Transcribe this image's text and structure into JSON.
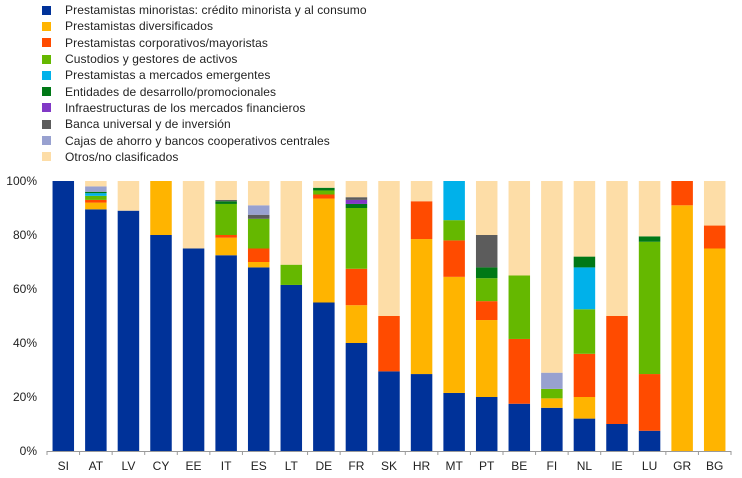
{
  "chart_data": {
    "type": "bar",
    "stacked": true,
    "categories": [
      "SI",
      "AT",
      "LV",
      "CY",
      "EE",
      "IT",
      "ES",
      "LT",
      "DE",
      "FR",
      "SK",
      "HR",
      "MT",
      "PT",
      "BE",
      "FI",
      "NL",
      "IE",
      "LU",
      "GR",
      "BG"
    ],
    "ylim": [
      0,
      100
    ],
    "y_ticks": [
      "0%",
      "20%",
      "40%",
      "60%",
      "80%",
      "100%"
    ],
    "y_tick_values": [
      0,
      20,
      40,
      60,
      80,
      100
    ],
    "legend_position": "top-left",
    "grid": false,
    "series": [
      {
        "name": "Prestamistas minoristas: crédito minorista y al consumo",
        "color": "#003299",
        "values": [
          100,
          89.5,
          89,
          80,
          75,
          72.5,
          68,
          61.5,
          55,
          40,
          29.5,
          28.5,
          21.5,
          20,
          17.5,
          16,
          12,
          10,
          7.5,
          0,
          0
        ]
      },
      {
        "name": "Prestamistas diversificados",
        "color": "#FFB400",
        "values": [
          0,
          2.5,
          0,
          20,
          0,
          6.5,
          2,
          0,
          38.5,
          14,
          0,
          50,
          43,
          28.5,
          0,
          3.5,
          8,
          0,
          0,
          91,
          75
        ]
      },
      {
        "name": "Prestamistas corporativos/mayoristas",
        "color": "#FF4B00",
        "values": [
          0,
          1,
          0,
          0,
          0,
          1,
          5,
          0,
          1.5,
          13.5,
          20.5,
          14,
          13.5,
          7,
          24,
          0,
          16,
          40,
          21,
          9,
          8.5
        ]
      },
      {
        "name": "Custodios y gestores de activos",
        "color": "#65B800",
        "values": [
          0,
          1.5,
          0,
          0,
          0,
          11.5,
          11,
          7.5,
          1.5,
          22.5,
          0,
          0,
          7.5,
          8.5,
          23.5,
          3.5,
          16.5,
          0,
          49,
          0,
          0
        ]
      },
      {
        "name": "Prestamistas a mercados emergentes",
        "color": "#00B1EA",
        "values": [
          0,
          1,
          0,
          0,
          0,
          0,
          0,
          0,
          0,
          0,
          0,
          0,
          14.5,
          0,
          0,
          0,
          15.5,
          0,
          0,
          0,
          0
        ]
      },
      {
        "name": "Entidades de desarrollo/promocionales",
        "color": "#007816",
        "values": [
          0,
          0.5,
          0,
          0,
          0,
          1,
          0,
          0,
          1,
          1.5,
          0,
          0,
          0,
          4,
          0,
          0,
          4,
          0,
          2,
          0,
          0
        ]
      },
      {
        "name": "Infraestructuras de los mercados financieros",
        "color": "#8139C6",
        "values": [
          0,
          0,
          0,
          0,
          0,
          0,
          0,
          0,
          0,
          1.5,
          0,
          0,
          0,
          0,
          0,
          0,
          0,
          0,
          0,
          0,
          0
        ]
      },
      {
        "name": "Banca universal y de inversión",
        "color": "#5C5C5C",
        "values": [
          0,
          0,
          0,
          0,
          0,
          0.5,
          1.5,
          0,
          0,
          1,
          0,
          0,
          0,
          12,
          0,
          0,
          0,
          0,
          0,
          0,
          0
        ]
      },
      {
        "name": "Cajas de ahorro y bancos cooperativos centrales",
        "color": "#98A1D0",
        "values": [
          0,
          2,
          0,
          0,
          0,
          0,
          3.5,
          0,
          0,
          0,
          0,
          0,
          0,
          0,
          0,
          6,
          0,
          0,
          0,
          0,
          0
        ]
      },
      {
        "name": "Otros/no clasificados",
        "color": "#FDDDA7",
        "values": [
          0,
          2,
          11,
          0,
          25,
          7,
          9,
          31,
          2.5,
          6,
          50,
          7.5,
          0,
          20,
          35,
          71,
          28,
          50,
          20.5,
          0,
          16.5
        ]
      }
    ]
  }
}
